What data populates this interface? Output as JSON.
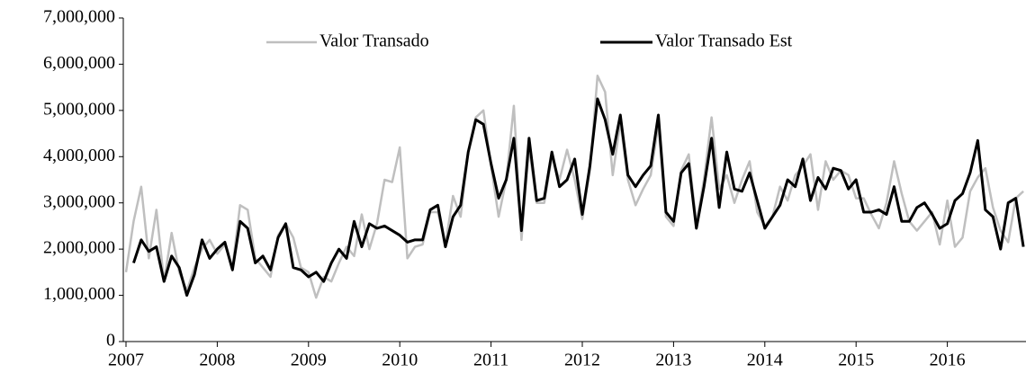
{
  "chart_data": {
    "type": "line",
    "categories": [
      "2007",
      null,
      null,
      null,
      null,
      null,
      null,
      null,
      null,
      null,
      null,
      null,
      "2008",
      null,
      null,
      null,
      null,
      null,
      null,
      null,
      null,
      null,
      null,
      null,
      "2009",
      null,
      null,
      null,
      null,
      null,
      null,
      null,
      null,
      null,
      null,
      null,
      "2010",
      null,
      null,
      null,
      null,
      null,
      null,
      null,
      null,
      null,
      null,
      null,
      "2011",
      null,
      null,
      null,
      null,
      null,
      null,
      null,
      null,
      null,
      null,
      null,
      "2012",
      null,
      null,
      null,
      null,
      null,
      null,
      null,
      null,
      null,
      null,
      null,
      "2013",
      null,
      null,
      null,
      null,
      null,
      null,
      null,
      null,
      null,
      null,
      null,
      "2014",
      null,
      null,
      null,
      null,
      null,
      null,
      null,
      null,
      null,
      null,
      null,
      "2015",
      null,
      null,
      null,
      null,
      null,
      null,
      null,
      null,
      null,
      null,
      null,
      "2016",
      null,
      null,
      null,
      null,
      null,
      null,
      null,
      null,
      null,
      null
    ],
    "series": [
      {
        "name": "Valor Transado",
        "color": "#bfbfbf",
        "values": [
          1500000,
          2600000,
          3350000,
          1800000,
          2850000,
          1300000,
          2350000,
          1500000,
          1100000,
          1600000,
          2000000,
          2200000,
          1900000,
          2100000,
          1600000,
          2950000,
          2850000,
          1800000,
          1600000,
          1400000,
          2300000,
          2550000,
          2250000,
          1600000,
          1500000,
          950000,
          1400000,
          1300000,
          1700000,
          2050000,
          1850000,
          2750000,
          2000000,
          2550000,
          3500000,
          3450000,
          4200000,
          1800000,
          2050000,
          2100000,
          2800000,
          2800000,
          2100000,
          3150000,
          2700000,
          4100000,
          4850000,
          5000000,
          3800000,
          2700000,
          3500000,
          5100000,
          2200000,
          4200000,
          3000000,
          3000000,
          4000000,
          3500000,
          4150000,
          3500000,
          2650000,
          3700000,
          5750000,
          5400000,
          3600000,
          4750000,
          3500000,
          2950000,
          3300000,
          3600000,
          4700000,
          2700000,
          2500000,
          3700000,
          4050000,
          2550000,
          3500000,
          4850000,
          3300000,
          3600000,
          3000000,
          3500000,
          3900000,
          2800000,
          2500000,
          2700000,
          3350000,
          3050000,
          3600000,
          3800000,
          4050000,
          2850000,
          3900000,
          3500000,
          3700000,
          3600000,
          3100000,
          3100000,
          2750000,
          2450000,
          3000000,
          3900000,
          3200000,
          2600000,
          2400000,
          2600000,
          2800000,
          2100000,
          3050000,
          2050000,
          2250000,
          3250000,
          3550000,
          3750000,
          2900000,
          2400000,
          2150000,
          3100000,
          3250000
        ]
      },
      {
        "name": "Valor Transado Est",
        "color": "#000000",
        "values": [
          null,
          1700000,
          2200000,
          1950000,
          2050000,
          1300000,
          1850000,
          1600000,
          1000000,
          1450000,
          2200000,
          1800000,
          2000000,
          2150000,
          1550000,
          2600000,
          2450000,
          1700000,
          1850000,
          1550000,
          2250000,
          2550000,
          1600000,
          1550000,
          1400000,
          1500000,
          1300000,
          1700000,
          2000000,
          1800000,
          2600000,
          2050000,
          2550000,
          2450000,
          2500000,
          2400000,
          2300000,
          2150000,
          2200000,
          2200000,
          2850000,
          2950000,
          2050000,
          2700000,
          2950000,
          4100000,
          4800000,
          4700000,
          3850000,
          3100000,
          3500000,
          4400000,
          2400000,
          4400000,
          3050000,
          3100000,
          4100000,
          3350000,
          3500000,
          3950000,
          2750000,
          3800000,
          5250000,
          4800000,
          4050000,
          4900000,
          3600000,
          3350000,
          3600000,
          3800000,
          4900000,
          2800000,
          2600000,
          3650000,
          3850000,
          2450000,
          3350000,
          4400000,
          2900000,
          4100000,
          3300000,
          3250000,
          3650000,
          3050000,
          2450000,
          2700000,
          2950000,
          3500000,
          3350000,
          3950000,
          3050000,
          3550000,
          3300000,
          3750000,
          3700000,
          3300000,
          3500000,
          2800000,
          2800000,
          2850000,
          2750000,
          3350000,
          2600000,
          2600000,
          2900000,
          3000000,
          2750000,
          2450000,
          2550000,
          3050000,
          3200000,
          3650000,
          4350000,
          2850000,
          2700000,
          2000000,
          3000000,
          3100000,
          2050000
        ]
      }
    ],
    "ylim": [
      0,
      7000000
    ],
    "yticks": [
      0,
      {
        "value": 1000000,
        "label": "1,000,000"
      },
      {
        "value": 2000000,
        "label": "2,000,000"
      },
      {
        "value": 3000000,
        "label": "3,000,000"
      },
      {
        "value": 4000000,
        "label": "4,000,000"
      },
      {
        "value": 5000000,
        "label": "5,000,000"
      },
      {
        "value": 6000000,
        "label": "6,000,000"
      },
      {
        "value": 7000000,
        "label": "7,000,000"
      }
    ],
    "grid": false,
    "legend": "top"
  }
}
